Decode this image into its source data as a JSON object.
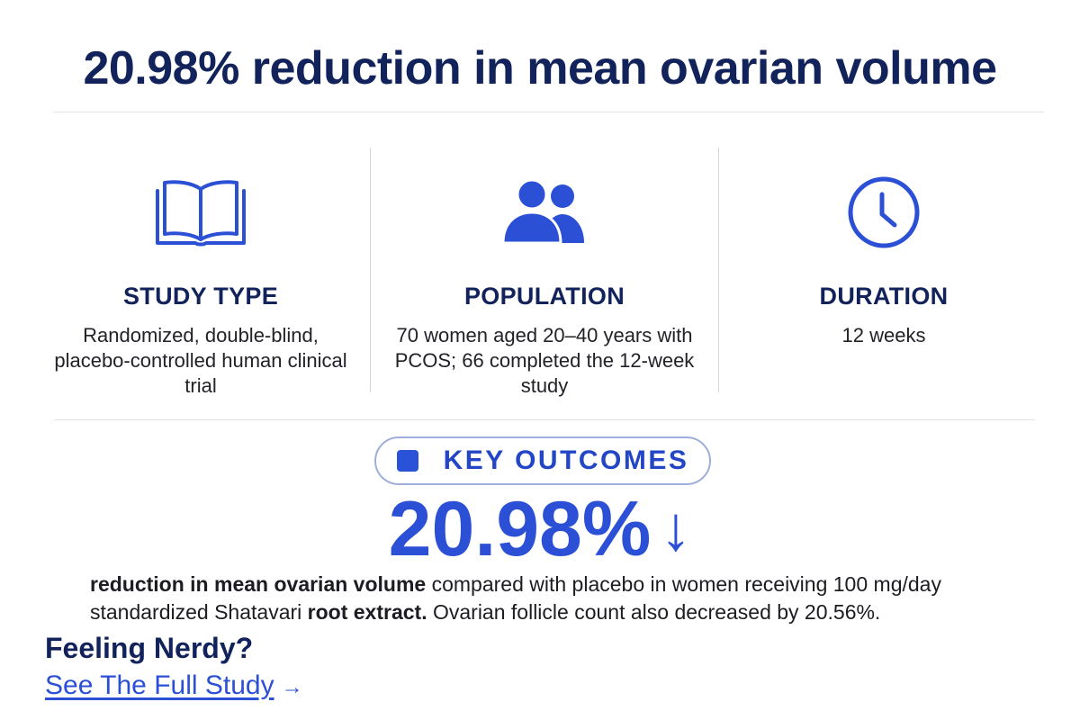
{
  "header": {
    "title": "20.98% reduction in mean ovarian volume"
  },
  "columns": [
    {
      "icon": "open-book-icon",
      "heading": "STUDY TYPE",
      "text": "Randomized, double-blind, placebo-controlled human clinical trial"
    },
    {
      "icon": "people-icon",
      "heading": "POPULATION",
      "text": "70 women aged 20–40 years with PCOS; 66 completed the 12-week study"
    },
    {
      "icon": "clock-icon",
      "heading": "DURATION",
      "text": "12 weeks"
    }
  ],
  "outcomes": {
    "pill_label": "KEY OUTCOMES",
    "big_value": "20.98%",
    "arrow": "↓",
    "description": {
      "part1_bold": "reduction in mean ovarian volume",
      "part2": " compared with placebo in women receiving 100 mg/day standardized Shatavari ",
      "part3_bold": "root extract.",
      "part4": " Ovarian follicle count also decreased by 20.56%."
    }
  },
  "footer": {
    "heading": "Feeling Nerdy?",
    "link_label": "See The Full Study",
    "link_arrow": "→"
  },
  "colors": {
    "navy": "#12235c",
    "accent_blue": "#2b50d6",
    "divider": "#e1e1e6"
  }
}
